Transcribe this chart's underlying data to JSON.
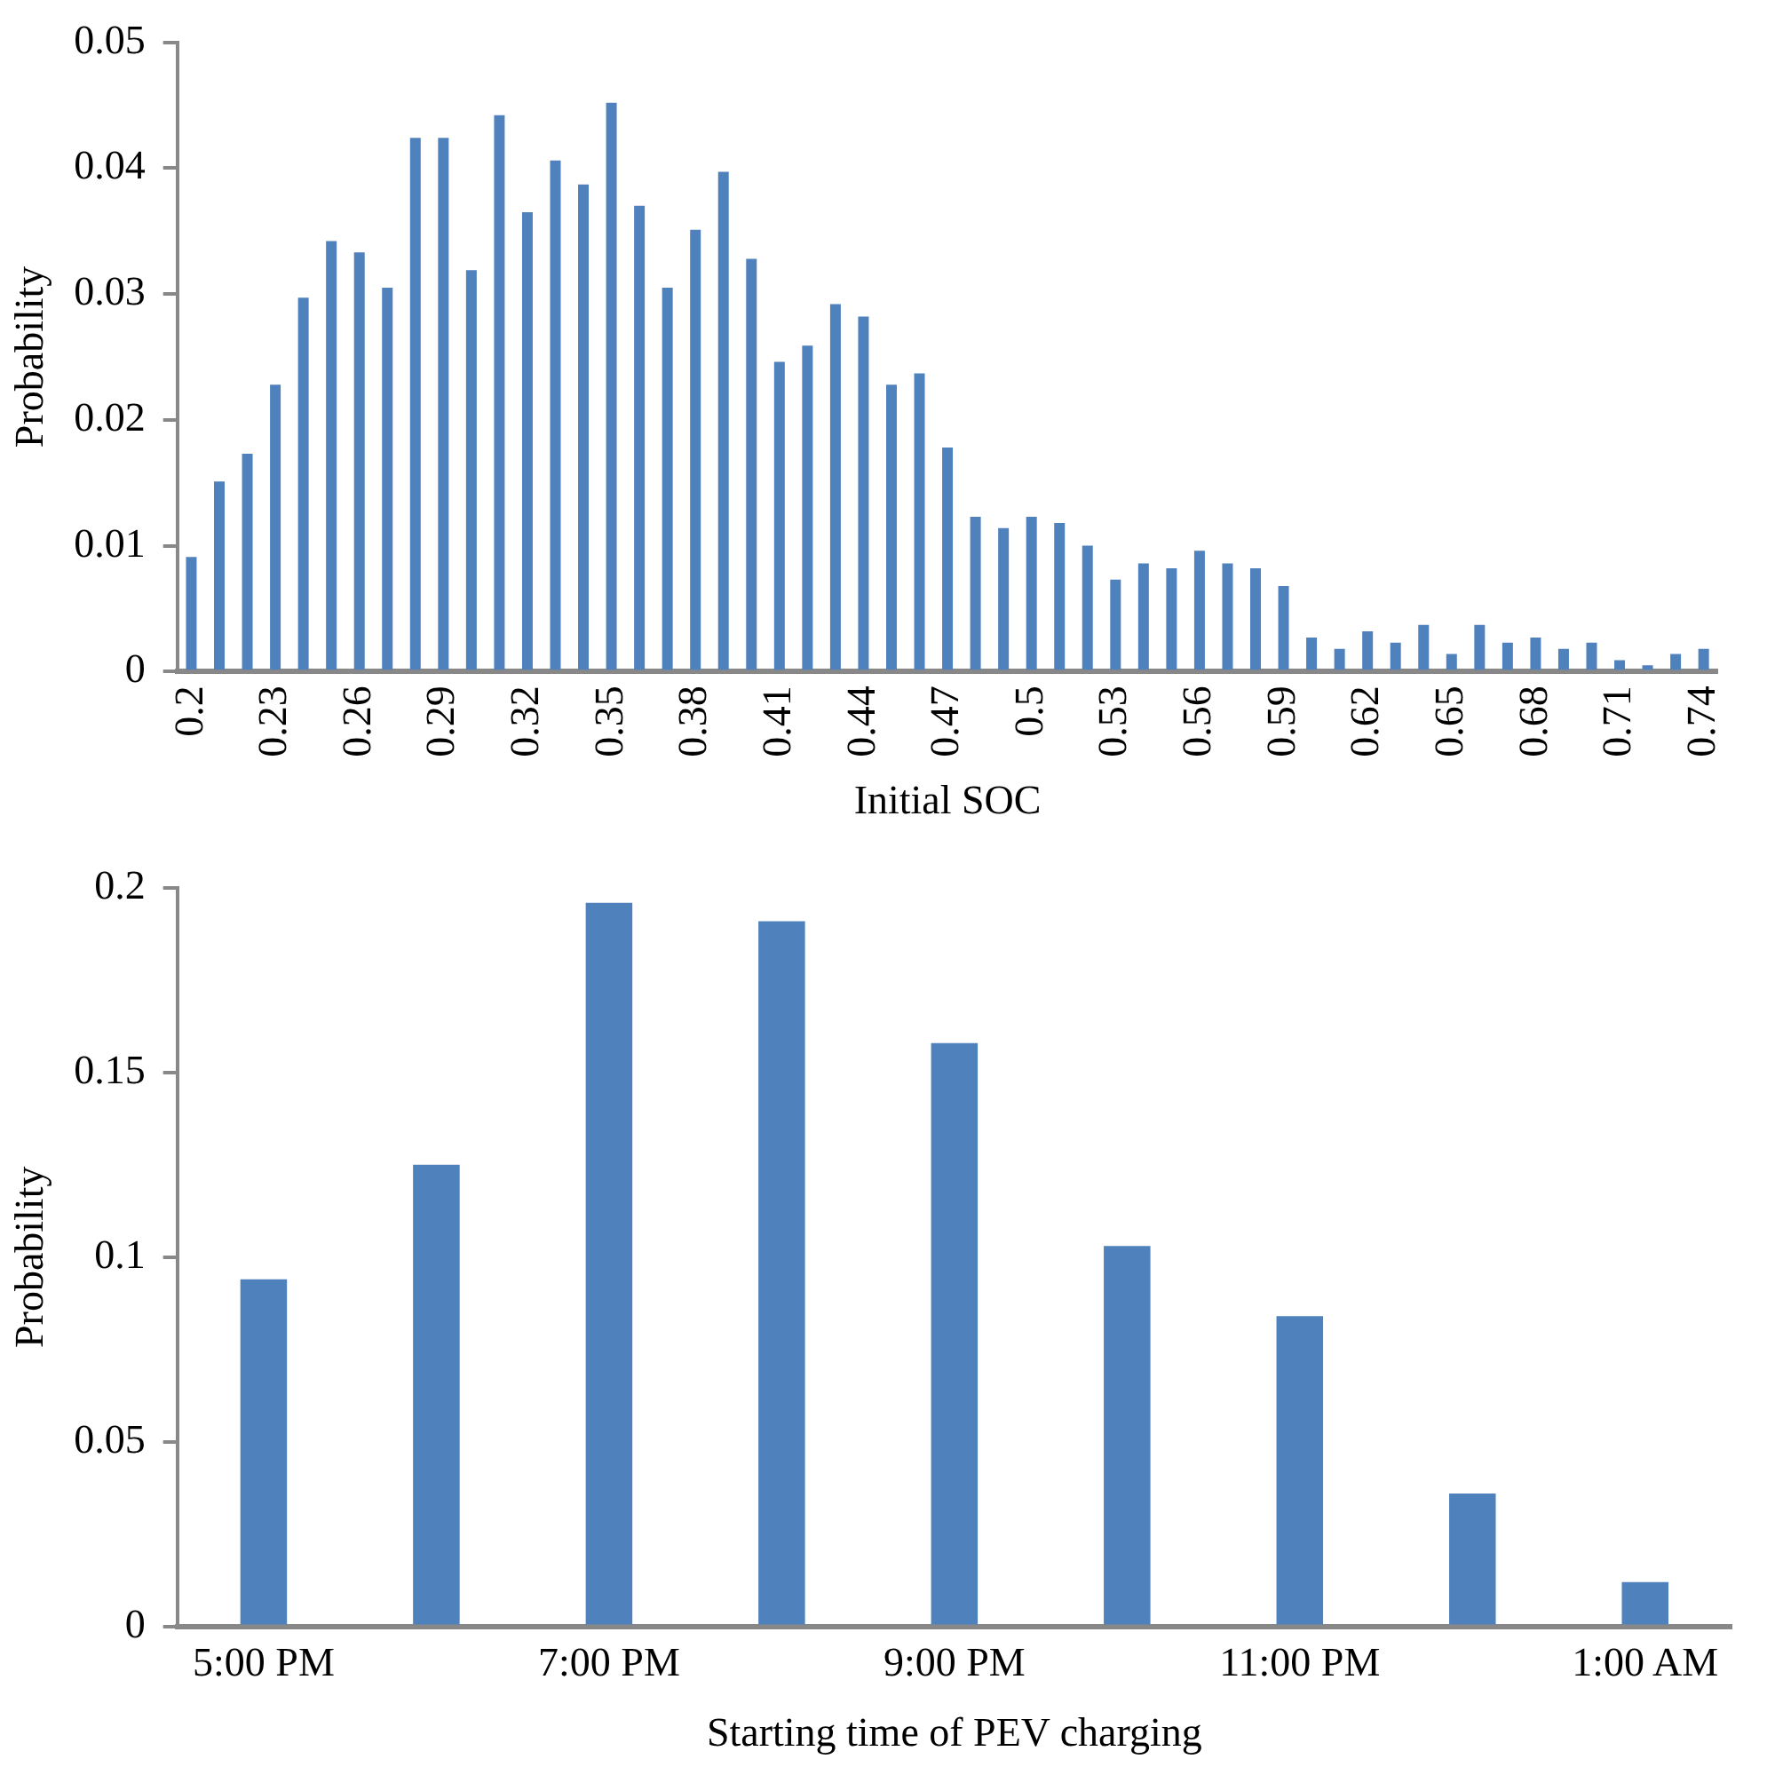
{
  "chart_data": [
    {
      "type": "bar",
      "xlabel": "Initial SOC",
      "ylabel": "Probability",
      "color": "#4f81bd",
      "categories": [
        "0.2",
        null,
        null,
        "0.23",
        null,
        null,
        "0.26",
        null,
        null,
        "0.29",
        null,
        null,
        "0.32",
        null,
        null,
        "0.35",
        null,
        null,
        "0.38",
        null,
        null,
        "0.41",
        null,
        null,
        "0.44",
        null,
        null,
        "0.47",
        null,
        null,
        "0.5",
        null,
        null,
        "0.53",
        null,
        null,
        "0.56",
        null,
        null,
        "0.59",
        null,
        null,
        "0.62",
        null,
        null,
        "0.65",
        null,
        null,
        "0.68",
        null,
        null,
        "0.71",
        null,
        null,
        "0.74"
      ],
      "values": [
        0.0091,
        0.0151,
        0.0173,
        0.0228,
        0.0297,
        0.0342,
        0.0333,
        0.0305,
        0.0424,
        0.0424,
        0.0319,
        0.0442,
        0.0365,
        0.0406,
        0.0387,
        0.0452,
        0.037,
        0.0305,
        0.0351,
        0.0397,
        0.0328,
        0.0246,
        0.0259,
        0.0292,
        0.0282,
        0.0228,
        0.0237,
        0.0178,
        0.0123,
        0.0114,
        0.0123,
        0.0118,
        0.01,
        0.0073,
        0.0086,
        0.0082,
        0.0096,
        0.0086,
        0.0082,
        0.0068,
        0.0027,
        0.0018,
        0.0032,
        0.0023,
        0.0037,
        0.0014,
        0.0037,
        0.0023,
        0.0027,
        0.0018,
        0.0023,
        0.0009,
        0.0005,
        0.0014,
        0.0018
      ],
      "ylim": [
        0,
        0.05
      ],
      "yticks": [
        0,
        0.01,
        0.02,
        0.03,
        0.04,
        0.05
      ]
    },
    {
      "type": "bar",
      "xlabel": "Starting time of PEV charging",
      "ylabel": "Probability",
      "color": "#4f81bd",
      "categories": [
        "5:00 PM",
        null,
        "7:00 PM",
        null,
        "9:00 PM",
        null,
        "11:00 PM",
        null,
        "1:00 AM"
      ],
      "values": [
        0.094,
        0.125,
        0.196,
        0.191,
        0.158,
        0.103,
        0.084,
        0.036,
        0.012
      ],
      "ylim": [
        0,
        0.2
      ],
      "yticks": [
        0,
        0.05,
        0.1,
        0.15,
        0.2
      ]
    }
  ]
}
